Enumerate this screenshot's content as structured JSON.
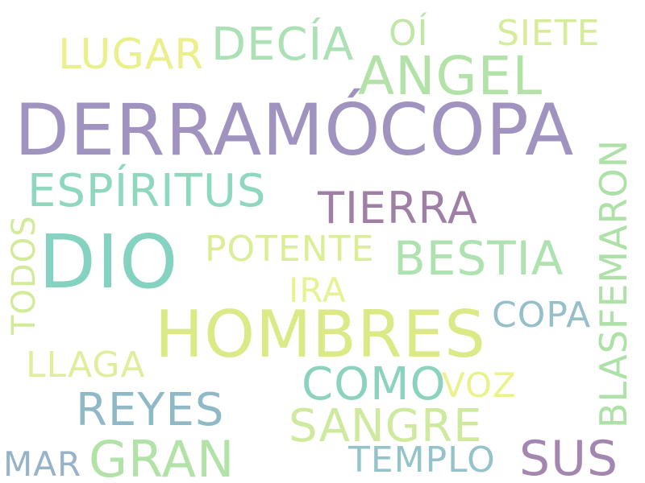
{
  "words": {
    "derramo": {
      "text": "DERRAMÓ",
      "color": "#a093c0"
    },
    "copa_big": {
      "text": "COPA",
      "color": "#a093c0"
    },
    "dio": {
      "text": "DIO",
      "color": "#84d2c0"
    },
    "hombres": {
      "text": "HOMBRES",
      "color": "#dbe987"
    },
    "angel": {
      "text": "ANGEL",
      "color": "#b3e2a8"
    },
    "decia": {
      "text": "DECÍA",
      "color": "#abe1b4"
    },
    "lugar": {
      "text": "LUGAR",
      "color": "#eaf08a"
    },
    "oi": {
      "text": "OÍ",
      "color": "#c0e6a8"
    },
    "siete": {
      "text": "SIETE",
      "color": "#d6ec98"
    },
    "espiritus": {
      "text": "ESPÍRITUS",
      "color": "#8fd8be"
    },
    "tierra": {
      "text": "TIERRA",
      "color": "#a07fa6"
    },
    "blasfemaron": {
      "text": "BLASFEMARON",
      "color": "#aee1a8"
    },
    "todos": {
      "text": "TODOS",
      "color": "#d3eb98"
    },
    "potente": {
      "text": "POTENTE",
      "color": "#d9ee95"
    },
    "bestia": {
      "text": "BESTIA",
      "color": "#aee2b0"
    },
    "ira": {
      "text": "IRA",
      "color": "#e6f294"
    },
    "copa_small": {
      "text": "COPA",
      "color": "#96bfc9"
    },
    "llaga": {
      "text": "LLAGA",
      "color": "#deee9c"
    },
    "como": {
      "text": "COMO",
      "color": "#8bd3bf"
    },
    "voz": {
      "text": "VOZ",
      "color": "#eaf28c"
    },
    "reyes": {
      "text": "REYES",
      "color": "#90b9c8"
    },
    "sangre": {
      "text": "SANGRE",
      "color": "#cfea9e"
    },
    "gran": {
      "text": "GRAN",
      "color": "#b2e2a8"
    },
    "sus": {
      "text": "SUS",
      "color": "#a487b0"
    },
    "templo": {
      "text": "TEMPLO",
      "color": "#95c3ca"
    },
    "mar": {
      "text": "MAR",
      "color": "#97b3c8"
    }
  }
}
